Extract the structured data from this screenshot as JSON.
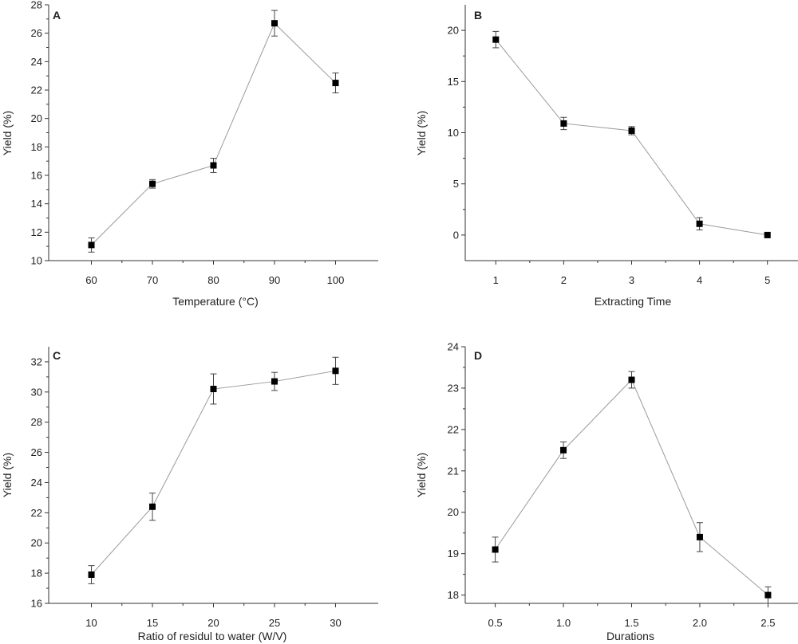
{
  "chart_data": [
    {
      "type": "line",
      "panel_label": "A",
      "xlabel": "Temperature (°C)",
      "ylabel": "Yield (%)",
      "x": [
        60,
        70,
        80,
        90,
        100
      ],
      "x_tick_labels": [
        "60",
        "70",
        "80",
        "90",
        "100"
      ],
      "xlim": [
        53,
        107
      ],
      "ylim": [
        10,
        28
      ],
      "y_ticks": [
        10,
        12,
        14,
        16,
        18,
        20,
        22,
        24,
        26,
        28
      ],
      "y_tick_labels": [
        "10",
        "12",
        "14",
        "16",
        "18",
        "20",
        "22",
        "24",
        "26",
        "28"
      ],
      "series": [
        {
          "values": [
            11.1,
            15.4,
            16.7,
            26.7,
            22.5
          ],
          "errors": [
            0.5,
            0.3,
            0.5,
            0.9,
            0.7
          ]
        }
      ],
      "grid": false,
      "line_color": "#9a9a9a",
      "marker_color": "#000000"
    },
    {
      "type": "line",
      "panel_label": "B",
      "xlabel": "Extracting Time",
      "ylabel": "Yield (%)",
      "x": [
        1,
        2,
        3,
        4,
        5
      ],
      "x_tick_labels": [
        "1",
        "2",
        "3",
        "4",
        "5"
      ],
      "xlim": [
        0.55,
        5.45
      ],
      "ylim": [
        -2.5,
        22.5
      ],
      "y_ticks": [
        0,
        5,
        10,
        15,
        20
      ],
      "y_tick_labels": [
        "0",
        "5",
        "10",
        "15",
        "20"
      ],
      "series": [
        {
          "values": [
            19.1,
            10.9,
            10.2,
            1.1,
            0.0
          ],
          "errors": [
            0.8,
            0.6,
            0.4,
            0.6,
            0.15
          ]
        }
      ],
      "grid": false,
      "line_color": "#9a9a9a",
      "marker_color": "#000000"
    },
    {
      "type": "line",
      "panel_label": "C",
      "xlabel": "Ratio of residul to water (W/V)",
      "ylabel": "Yield (%)",
      "x": [
        10,
        15,
        20,
        25,
        30
      ],
      "x_tick_labels": [
        "10",
        "15",
        "20",
        "25",
        "30"
      ],
      "xlim": [
        6.5,
        33.5
      ],
      "ylim": [
        16,
        33
      ],
      "y_ticks": [
        16,
        18,
        20,
        22,
        24,
        26,
        28,
        30,
        32
      ],
      "y_tick_labels": [
        "16",
        "18",
        "20",
        "22",
        "24",
        "26",
        "28",
        "30",
        "32"
      ],
      "series": [
        {
          "values": [
            17.9,
            22.4,
            30.2,
            30.7,
            31.4
          ],
          "errors": [
            0.6,
            0.9,
            1.0,
            0.6,
            0.9
          ]
        }
      ],
      "grid": false,
      "line_color": "#9a9a9a",
      "marker_color": "#000000"
    },
    {
      "type": "line",
      "panel_label": "D",
      "xlabel": "Durations",
      "ylabel": "Yield (%)",
      "x": [
        0.5,
        1.0,
        1.5,
        2.0,
        2.5
      ],
      "x_tick_labels": [
        "0.5",
        "1.0",
        "1.5",
        "2.0",
        "2.5"
      ],
      "xlim": [
        0.28,
        2.72
      ],
      "ylim": [
        17.8,
        24
      ],
      "y_ticks": [
        18,
        19,
        20,
        21,
        22,
        23,
        24
      ],
      "y_tick_labels": [
        "18",
        "19",
        "20",
        "21",
        "22",
        "23",
        "24"
      ],
      "series": [
        {
          "values": [
            19.1,
            21.5,
            23.2,
            19.4,
            18.0
          ],
          "errors": [
            0.3,
            0.2,
            0.2,
            0.35,
            0.2
          ]
        }
      ],
      "grid": false,
      "line_color": "#9a9a9a",
      "marker_color": "#000000"
    }
  ]
}
